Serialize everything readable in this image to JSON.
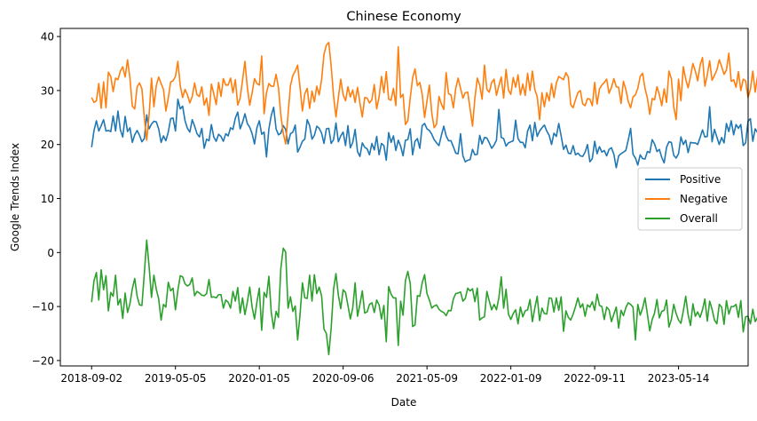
{
  "chart_data": {
    "type": "line",
    "title": "Chinese Economy",
    "xlabel": "Date",
    "ylabel": "Google Trends Index",
    "x_tick_labels": [
      "2018-09-02",
      "2019-05-05",
      "2020-01-05",
      "2020-09-06",
      "2021-05-09",
      "2022-01-09",
      "2022-09-11",
      "2023-05-14"
    ],
    "x_start": "2018-09-02",
    "x_end": "2023-09-03",
    "x_step": "weekly",
    "ylim": [
      -21.0,
      41.5
    ],
    "y_ticks": [
      -20,
      -10,
      0,
      10,
      20,
      30,
      40
    ],
    "grid": false,
    "legend": "center-right",
    "series": [
      {
        "name": "Positive",
        "color": "#1f77b4",
        "values": [
          19.5,
          22.6,
          24.4,
          22.5,
          23.5,
          24.6,
          22.5,
          22.6,
          22.4,
          25.3,
          22.5,
          26.2,
          22.7,
          21.4,
          25.2,
          22.4,
          23.1,
          20.4,
          21.8,
          22.6,
          21.7,
          20.5,
          21.1,
          25.5,
          22.9,
          23.8,
          24.3,
          24.2,
          22.9,
          20.4,
          21.6,
          20.7,
          22.3,
          24.8,
          24.9,
          22.5,
          28.4,
          26.6,
          27.1,
          24.4,
          23.0,
          22.3,
          24.6,
          23.4,
          22.0,
          21.4,
          23.0,
          19.3,
          21.0,
          20.7,
          23.7,
          21.4,
          20.6,
          21.9,
          21.5,
          20.6,
          22.0,
          21.6,
          23.1,
          22.8,
          24.9,
          26.0,
          22.9,
          24.1,
          25.7,
          23.9,
          23.2,
          22.0,
          20.1,
          23.1,
          24.4,
          21.9,
          22.3,
          17.7,
          22.9,
          25.4,
          26.9,
          22.9,
          21.8,
          22.1,
          23.5,
          22.8,
          20.1,
          22.0,
          22.3,
          23.6,
          18.6,
          19.5,
          20.6,
          21.0,
          24.6,
          23.5,
          21.0,
          21.7,
          23.4,
          23.0,
          22.1,
          20.2,
          22.9,
          23.0,
          20.2,
          20.9,
          24.0,
          20.5,
          21.6,
          22.3,
          19.8,
          23.5,
          19.4,
          20.4,
          22.8,
          18.7,
          17.8,
          20.3,
          19.5,
          19.2,
          18.1,
          20.2,
          19.0,
          21.5,
          18.1,
          20.2,
          19.8,
          17.1,
          22.2,
          20.4,
          21.6,
          18.9,
          20.8,
          19.7,
          17.9,
          20.8,
          20.9,
          22.9,
          18.1,
          20.6,
          21.1,
          19.3,
          23.5,
          23.9,
          22.9,
          22.6,
          21.9,
          20.9,
          20.3,
          19.8,
          21.7,
          23.4,
          21.6,
          20.7,
          20.7,
          19.6,
          18.4,
          18.3,
          22.0,
          17.9,
          16.8,
          17.1,
          17.2,
          19.1,
          18.1,
          18.2,
          21.7,
          20.1,
          21.3,
          21.2,
          20.3,
          19.3,
          19.9,
          20.8,
          26.5,
          21.3,
          21.1,
          19.7,
          20.3,
          20.5,
          20.7,
          24.5,
          21.1,
          20.4,
          20.4,
          19.4,
          22.5,
          23.6,
          20.7,
          24.1,
          21.5,
          22.5,
          23.1,
          23.6,
          22.5,
          21.7,
          20.0,
          22.1,
          21.5,
          23.9,
          21.6,
          19.1,
          19.9,
          18.4,
          18.3,
          19.8,
          18.1,
          18.4,
          17.9,
          17.8,
          18.6,
          20.0,
          16.8,
          17.4,
          20.6,
          18.3,
          19.6,
          18.6,
          18.9,
          17.9,
          19.1,
          19.4,
          18.2,
          15.7,
          17.9,
          18.3,
          18.6,
          18.9,
          20.8,
          23.0,
          18.2,
          17.5,
          16.2,
          18.1,
          17.4,
          17.3,
          18.7,
          18.5,
          20.9,
          20.1,
          18.7,
          19.1,
          17.6,
          16.6,
          19.5,
          20.5,
          20.4,
          18.0,
          17.5,
          18.3,
          21.4,
          20.0,
          20.8,
          18.5,
          20.4,
          20.3,
          20.3,
          20.0,
          21.3,
          22.7,
          21.4,
          21.5,
          27.0,
          20.5,
          22.8,
          21.4,
          20.0,
          21.3,
          20.3,
          23.9,
          22.4,
          24.4,
          21.8,
          23.7,
          23.0,
          23.7,
          19.8,
          20.3,
          24.3,
          24.8,
          20.6,
          22.9,
          22.2,
          21.8,
          21.1,
          21.6,
          23.9,
          20.9,
          24.2,
          22.2,
          21.3,
          20.2,
          21.0,
          20.5,
          19.6,
          20.7,
          20.9,
          20.6,
          19.9,
          19.4,
          21.3,
          19.8,
          21.1,
          20.6,
          19.2,
          18.5,
          20.2,
          19.6,
          19.1,
          20.2,
          19.3,
          18.9,
          21.4,
          20.4,
          20.1,
          19.3,
          19.2,
          18.8,
          17.4,
          19.4,
          19.9,
          21.5,
          23.7,
          22.9,
          19.2,
          24.6,
          20.2,
          21.0,
          18.9,
          18.7,
          19.1,
          19.2,
          18.6,
          18.9,
          21.9,
          22.0,
          20.3,
          18.3,
          22.4,
          21.4,
          21.2,
          20.9,
          20.1,
          18.7,
          19.6,
          22.1,
          21.7,
          21.6,
          18.9,
          18.3,
          21.8,
          23.1,
          20.5,
          21.3,
          20.3,
          19.7,
          20.6,
          19.6,
          18.6,
          20.9,
          19.5,
          19.2,
          20.3,
          19.6,
          19.5,
          20.2,
          19.6,
          19.9,
          20.3,
          20.4,
          19.8,
          20.4,
          21.0,
          19.9,
          21.3,
          20.5,
          20.4,
          20.3,
          19.8,
          21.2,
          21.2,
          20.8,
          20.8,
          19.9,
          20.4,
          20.1,
          19.5,
          19.1,
          21.7,
          18.8,
          19.4
        ]
      },
      {
        "name": "Negative",
        "color": "#ff7f0e",
        "values": [
          28.7,
          27.8,
          28.1,
          31.3,
          26.7,
          31.6,
          26.8,
          33.4,
          32.6,
          29.8,
          32.3,
          32.0,
          33.6,
          34.4,
          32.5,
          35.7,
          32.3,
          27.1,
          26.6,
          30.7,
          31.4,
          30.3,
          25.0,
          20.8,
          25.5,
          32.3,
          27.0,
          30.9,
          32.5,
          31.3,
          30.2,
          26.2,
          28.6,
          31.6,
          31.8,
          32.6,
          35.4,
          30.9,
          28.7,
          30.2,
          29.2,
          27.7,
          28.9,
          31.4,
          29.2,
          28.9,
          30.7,
          27.3,
          28.6,
          25.4,
          31.2,
          29.4,
          27.4,
          31.5,
          28.9,
          32.2,
          31.0,
          31.0,
          32.3,
          29.6,
          32.0,
          27.3,
          28.6,
          31.9,
          35.4,
          30.6,
          27.3,
          29.6,
          32.2,
          31.3,
          31.0,
          36.4,
          25.7,
          29.6,
          31.3,
          30.8,
          30.8,
          33.0,
          30.5,
          25.4,
          22.1,
          20.1,
          25.6,
          30.9,
          32.8,
          33.6,
          34.7,
          30.6,
          26.2,
          29.4,
          30.4,
          26.7,
          29.9,
          27.9,
          30.8,
          29.2,
          32.0,
          36.7,
          38.4,
          38.9,
          34.5,
          29.0,
          25.1,
          28.7,
          32.1,
          29.2,
          28.1,
          30.7,
          28.8,
          30.1,
          27.8,
          30.6,
          27.7,
          25.1,
          28.7,
          28.6,
          27.7,
          28.3,
          31.1,
          26.6,
          28.8,
          32.6,
          29.6,
          33.5,
          28.4,
          28.2,
          30.4,
          27.2,
          38.1,
          28.7,
          29.3,
          23.7,
          24.4,
          28.6,
          32.3,
          34.0,
          30.9,
          31.5,
          29.3,
          25.0,
          28.1,
          31.0,
          25.8,
          23.1,
          23.8,
          28.9,
          27.5,
          26.5,
          33.3,
          29.4,
          29.2,
          26.8,
          30.4,
          32.3,
          30.4,
          28.6,
          29.6,
          29.7,
          26.6,
          23.4,
          28.6,
          32.3,
          31.0,
          28.4,
          34.7,
          30.2,
          29.7,
          31.5,
          32.1,
          29.1,
          30.9,
          32.5,
          28.6,
          33.9,
          30.1,
          29.3,
          32.4,
          30.6,
          32.9,
          29.2,
          31.2,
          29.1,
          33.2,
          30.0,
          33.6,
          30.2,
          28.9,
          24.6,
          29.6,
          27.0,
          29.6,
          28.1,
          31.3,
          28.7,
          31.4,
          32.6,
          32.3,
          32.0,
          33.3,
          32.5,
          27.4,
          26.8,
          28.3,
          29.6,
          30.0,
          27.5,
          27.2,
          28.5,
          28.4,
          27.2,
          31.5,
          27.5,
          30.3,
          31.0,
          31.5,
          32.1,
          29.5,
          30.6,
          32.2,
          30.7,
          30.6,
          27.6,
          31.7,
          30.2,
          28.0,
          26.8,
          28.8,
          29.2,
          30.4,
          32.6,
          33.2,
          30.4,
          28.6,
          25.6,
          28.5,
          28.3,
          30.7,
          29.2,
          27.2,
          30.3,
          27.8,
          33.6,
          32.2,
          27.0,
          24.6,
          32.1,
          28.1,
          34.4,
          32.1,
          30.5,
          32.6,
          35.0,
          33.6,
          31.8,
          34.7,
          36.1,
          30.8,
          32.9,
          35.5,
          31.9,
          32.8,
          33.8,
          35.7,
          34.4,
          33.0,
          33.8,
          36.9,
          31.7,
          32.0,
          30.6,
          33.5,
          30.0,
          32.1,
          31.8,
          28.7,
          30.2,
          33.6,
          29.7,
          32.7,
          28.5,
          32.1,
          30.5,
          31.2,
          31.5,
          28.8,
          29.8,
          32.5,
          31.0,
          30.0,
          33.2,
          32.9,
          35.7,
          29.6,
          30.4,
          30.6,
          31.6,
          29.0,
          29.7,
          29.5,
          32.0,
          32.9,
          31.7,
          31.1,
          28.1,
          28.3,
          29.0,
          27.6,
          24.0,
          29.3,
          27.0,
          26.0,
          24.9,
          27.5,
          31.1,
          32.8,
          29.9,
          31.8,
          31.5,
          31.5,
          30.3,
          32.1,
          34.5,
          31.2,
          27.0,
          27.4,
          30.6,
          33.4,
          30.5,
          29.3,
          28.5,
          32.8,
          29.3,
          29.9,
          28.5,
          29.9,
          28.4,
          26.4,
          29.7,
          28.1,
          26.2,
          29.0,
          26.8,
          25.1,
          28.9,
          25.6,
          27.6,
          28.6,
          26.8,
          26.2,
          27.9,
          26.6,
          27.0,
          27.9,
          26.7,
          30.4,
          27.2,
          28.7,
          28.3,
          25.4,
          27.3,
          29.4,
          30.1,
          27.5,
          30.5,
          27.8,
          28.1,
          29.7,
          27.8,
          27.3,
          28.5,
          28.7,
          25.7,
          28.2,
          27.8,
          27.7,
          26.3,
          26.8,
          27.1,
          26.0,
          27.1,
          30.1,
          27.3,
          26.1,
          27.0,
          25.4,
          24.9,
          30.3,
          28.1,
          25.3
        ]
      },
      {
        "name": "Overall",
        "color": "#2ca02c",
        "values": [
          -9.2,
          -5.2,
          -3.7,
          -8.8,
          -3.2,
          -6.9,
          -4.3,
          -10.8,
          -7.4,
          -8.1,
          -4.2,
          -9.7,
          -8.6,
          -12.2,
          -7.5,
          -11.1,
          -9.5,
          -6.7,
          -4.8,
          -8.1,
          -9.7,
          -9.8,
          -3.9,
          2.3,
          -2.6,
          -8.3,
          -4.2,
          -6.8,
          -8.6,
          -12.5,
          -9.6,
          -10.1,
          -5.5,
          -7.1,
          -6.6,
          -10.6,
          -7.0,
          -4.3,
          -4.5,
          -5.8,
          -6.2,
          -5.9,
          -4.7,
          -8.0,
          -7.2,
          -7.5,
          -7.9,
          -8.0,
          -7.6,
          -5.0,
          -8.3,
          -8.2,
          -8.4,
          -7.8,
          -7.8,
          -10.3,
          -8.8,
          -9.2,
          -10.3,
          -7.2,
          -9.0,
          -6.5,
          -11.2,
          -8.4,
          -11.5,
          -9.2,
          -6.4,
          -10.1,
          -12.3,
          -9.2,
          -6.6,
          -14.4,
          -7.4,
          -8.3,
          -4.4,
          -11.1,
          -14.1,
          -10.9,
          -12.0,
          -2.9,
          0.8,
          0.1,
          -10.3,
          -8.2,
          -10.9,
          -9.9,
          -16.2,
          -11.5,
          -5.6,
          -8.4,
          -8.5,
          -4.2,
          -9.0,
          -4.1,
          -7.6,
          -6.4,
          -8.0,
          -14.2,
          -15.0,
          -18.9,
          -14.0,
          -6.8,
          -3.9,
          -7.9,
          -10.4,
          -6.9,
          -7.4,
          -9.8,
          -12.3,
          -10.3,
          -5.6,
          -11.8,
          -9.6,
          -7.1,
          -11.2,
          -11.0,
          -9.6,
          -9.3,
          -11.1,
          -8.8,
          -9.7,
          -12.3,
          -9.8,
          -16.5,
          -6.3,
          -7.7,
          -8.4,
          -8.4,
          -17.2,
          -9.0,
          -11.6,
          -5.2,
          -3.5,
          -5.7,
          -13.7,
          -13.4,
          -8.0,
          -8.1,
          -5.6,
          -4.1,
          -7.6,
          -8.8,
          -10.3,
          -9.9,
          -9.7,
          -10.5,
          -10.9,
          -11.1,
          -11.7,
          -10.7,
          -10.8,
          -8.6,
          -7.6,
          -7.5,
          -7.3,
          -9.0,
          -8.5,
          -6.6,
          -7.1,
          -6.7,
          -9.1,
          -6.6,
          -12.5,
          -12.1,
          -11.9,
          -7.2,
          -9.0,
          -10.6,
          -9.6,
          -10.6,
          -8.4,
          -4.5,
          -10.3,
          -6.8,
          -11.4,
          -12.4,
          -11.3,
          -10.6,
          -13.2,
          -10.1,
          -11.9,
          -10.8,
          -10.6,
          -8.7,
          -12.8,
          -10.3,
          -8.1,
          -12.6,
          -10.3,
          -11.3,
          -11.4,
          -8.4,
          -8.5,
          -11.0,
          -8.4,
          -10.7,
          -8.2,
          -14.6,
          -10.8,
          -12.0,
          -12.5,
          -11.4,
          -10.0,
          -8.4,
          -10.2,
          -9.5,
          -11.8,
          -9.7,
          -10.1,
          -9.1,
          -10.7,
          -7.7,
          -9.8,
          -10.0,
          -12.4,
          -10.1,
          -10.6,
          -12.8,
          -11.4,
          -10.1,
          -14.0,
          -10.7,
          -11.7,
          -10.2,
          -9.3,
          -9.6,
          -10.1,
          -16.2,
          -9.6,
          -11.6,
          -10.3,
          -8.4,
          -11.4,
          -14.5,
          -12.4,
          -11.2,
          -8.7,
          -12.1,
          -10.9,
          -10.7,
          -8.8,
          -13.8,
          -12.4,
          -9.6,
          -11.3,
          -12.5,
          -13.1,
          -10.8,
          -8.1,
          -11.5,
          -13.5,
          -9.5,
          -11.8,
          -11.0,
          -12.0,
          -10.6,
          -8.6,
          -12.7,
          -9.0,
          -10.5,
          -12.5,
          -13.2,
          -9.6,
          -10.1,
          -13.3,
          -8.9,
          -11.4,
          -10.0,
          -10.0,
          -9.6,
          -12.0,
          -8.9,
          -14.7,
          -11.9,
          -11.8,
          -13.2,
          -10.5,
          -12.8,
          -12.0,
          -12.6,
          -8.9,
          -10.2,
          -11.8,
          -10.6,
          -10.2,
          -10.8,
          -12.2,
          -11.9,
          -12.3,
          -12.0,
          -11.6,
          -10.1,
          -11.6,
          -10.4,
          -12.8,
          -13.4,
          -13.8,
          -10.9,
          -13.2,
          -12.8,
          -13.9,
          -13.4,
          -13.9,
          -13.7,
          -15.3,
          -12.0,
          -14.6,
          -14.6,
          -13.8,
          -14.0,
          -12.0,
          -14.5,
          -12.1,
          -10.6,
          -12.6,
          -11.8,
          -10.6,
          -10.2,
          -9.5,
          -10.1,
          -10.6,
          -9.6,
          -8.7,
          -10.5,
          -7.8,
          -8.3,
          -8.0,
          -11.2,
          -10.8,
          -9.0,
          -7.8,
          -10.2,
          -8.1,
          -10.9,
          -8.3,
          -10.2,
          -12.3,
          -11.0,
          -10.3,
          -10.1,
          -6.8,
          -11.2,
          -8.0,
          -7.7,
          -9.3,
          -13.8,
          -10.6,
          -9.0,
          -8.3,
          -8.8,
          -8.6,
          -10.3,
          -11.5,
          -11.5,
          -8.6,
          -12.4,
          -11.0,
          -7.7,
          -6.3,
          -8.8,
          -12.6,
          -10.3,
          -10.6,
          -8.5,
          -9.1,
          -8.7,
          -6.1,
          -8.4,
          -12.6,
          -8.7,
          -7.7,
          -5.2,
          -9.6,
          -7.4,
          -6.8,
          -9.1,
          -8.7,
          -9.8,
          -8.5,
          -6.5,
          -6.3,
          -8.1,
          -5.7,
          -7.3,
          -7.3,
          -7.9,
          -6.1,
          -8.5,
          -7.4,
          -6.9,
          -8.4,
          -6.8,
          -6.3,
          -6.7,
          -7.8,
          -8.1,
          -8.2
        ]
      }
    ]
  }
}
